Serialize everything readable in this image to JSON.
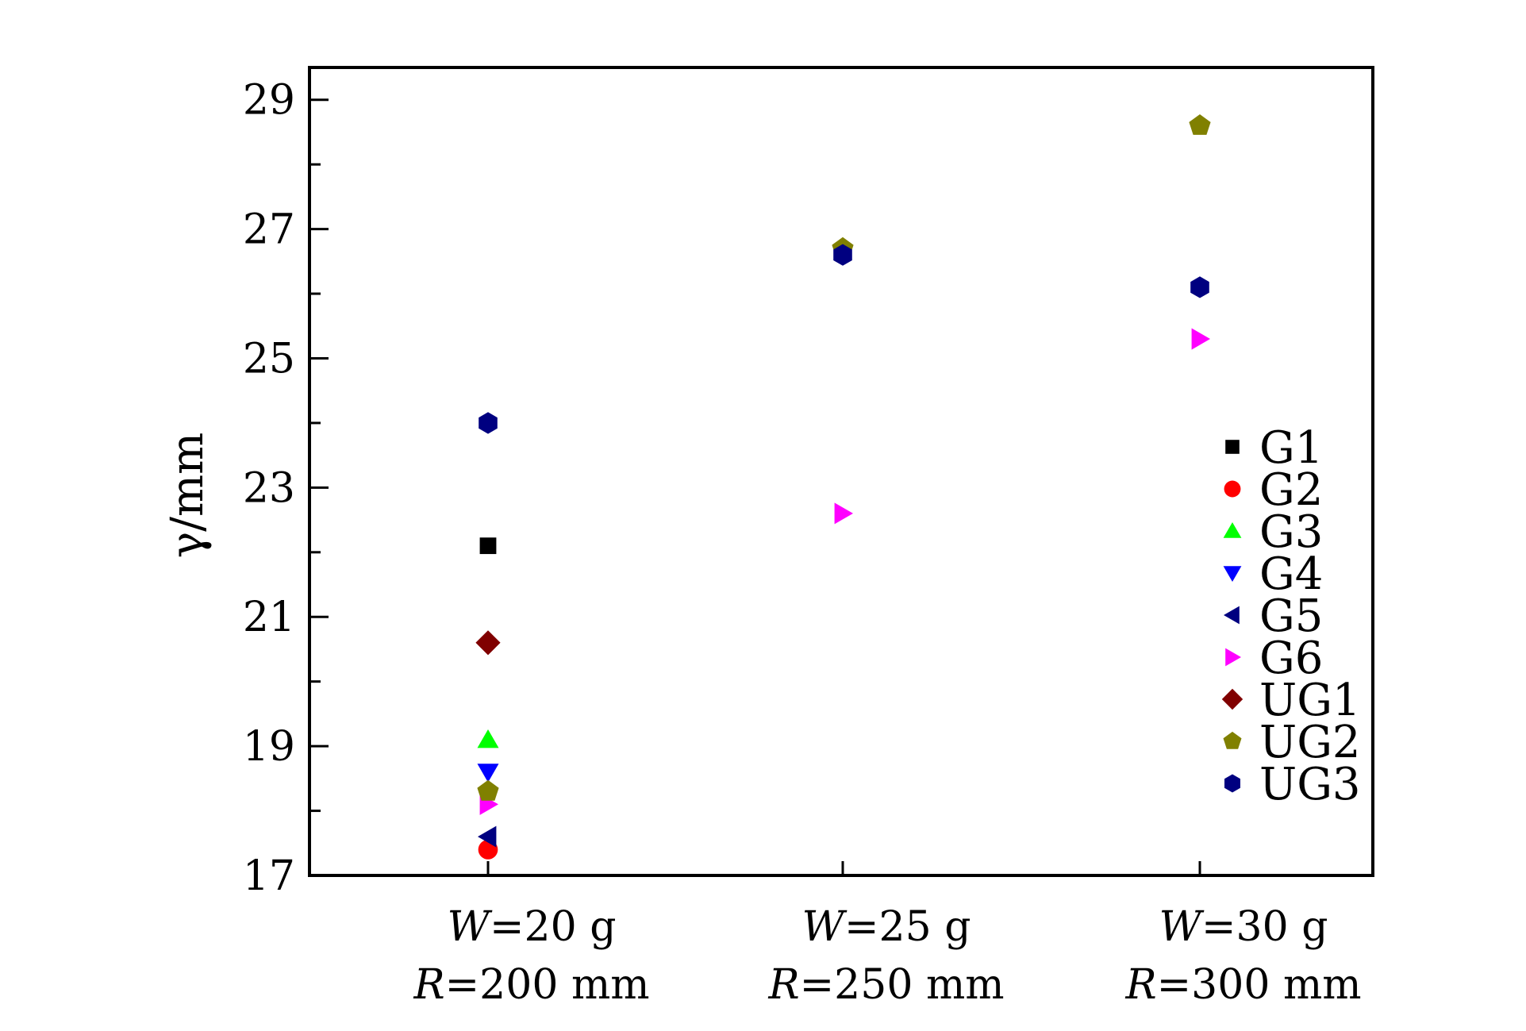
{
  "chart_data": {
    "type": "scatter",
    "title": "",
    "xlabel": "",
    "ylabel": "γ/mm",
    "ylim": [
      17,
      29.5
    ],
    "yticks": [
      17,
      19,
      21,
      23,
      25,
      27,
      29
    ],
    "grid": false,
    "legend_position": "right",
    "categories": [
      {
        "line1_var": "W",
        "line1_rest": "=20 g",
        "line2_var": "R",
        "line2_rest": "=200 mm"
      },
      {
        "line1_var": "W",
        "line1_rest": "=25 g",
        "line2_var": "R",
        "line2_rest": "=250 mm"
      },
      {
        "line1_var": "W",
        "line1_rest": "=30 g",
        "line2_var": "R",
        "line2_rest": "=300 mm"
      }
    ],
    "series": [
      {
        "name": "G1",
        "marker": "square",
        "color": "#000000",
        "values": [
          22.1,
          null,
          null
        ]
      },
      {
        "name": "G2",
        "marker": "circle",
        "color": "#ff0000",
        "values": [
          17.4,
          null,
          null
        ]
      },
      {
        "name": "G3",
        "marker": "triangle-up",
        "color": "#00ff00",
        "values": [
          19.1,
          null,
          null
        ]
      },
      {
        "name": "G4",
        "marker": "triangle-down",
        "color": "#0000ff",
        "values": [
          18.6,
          null,
          null
        ]
      },
      {
        "name": "G5",
        "marker": "triangle-left",
        "color": "#000080",
        "values": [
          17.6,
          null,
          null
        ]
      },
      {
        "name": "G6",
        "marker": "triangle-right",
        "color": "#ff00ff",
        "values": [
          18.1,
          22.6,
          25.3
        ]
      },
      {
        "name": "UG1",
        "marker": "diamond",
        "color": "#800000",
        "values": [
          20.6,
          null,
          null
        ]
      },
      {
        "name": "UG2",
        "marker": "pentagon",
        "color": "#808000",
        "values": [
          18.3,
          26.7,
          28.6
        ]
      },
      {
        "name": "UG3",
        "marker": "hexagon",
        "color": "#000080",
        "values": [
          24.0,
          26.6,
          26.1
        ]
      }
    ]
  }
}
